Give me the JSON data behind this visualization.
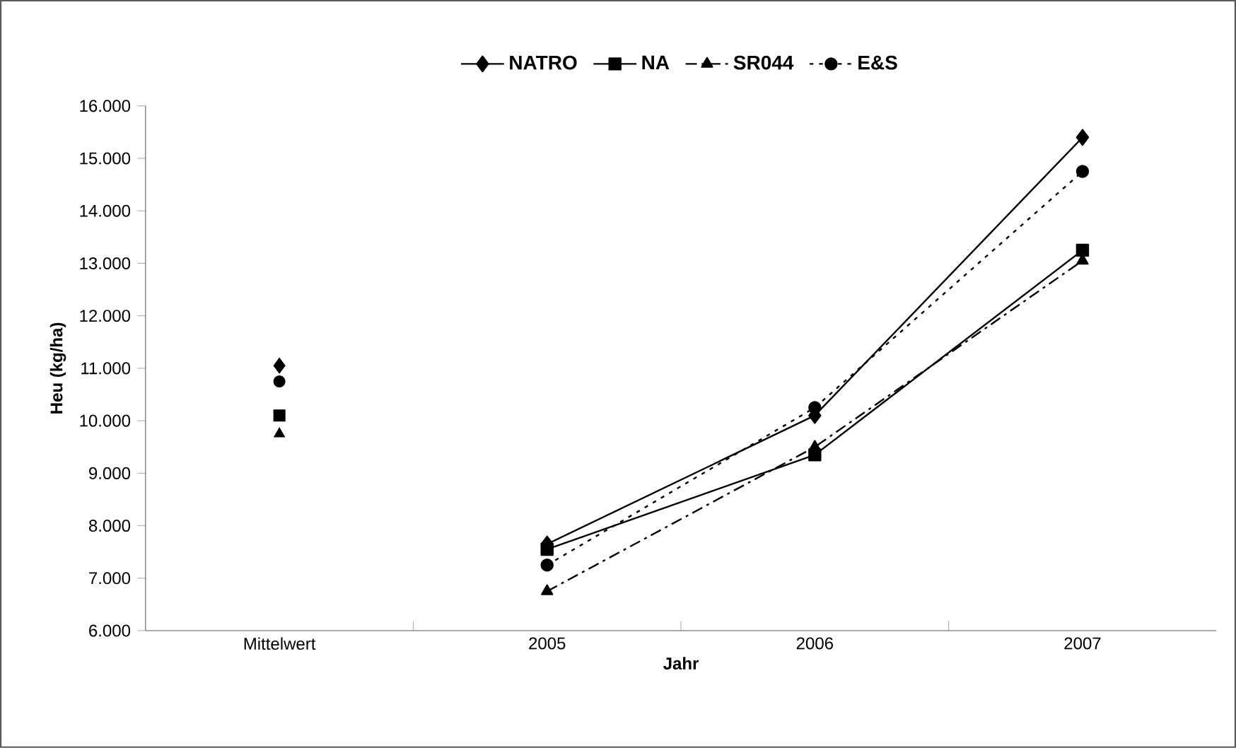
{
  "chart_data": {
    "type": "line",
    "xlabel": "Jahr",
    "ylabel": "Heu (kg/ha)",
    "categories": [
      "Mittelwert",
      "2005",
      "2006",
      "2007"
    ],
    "ylim": [
      6000,
      16000
    ],
    "yticks": [
      {
        "value": 6000,
        "label": "6.000"
      },
      {
        "value": 7000,
        "label": "7.000"
      },
      {
        "value": 8000,
        "label": "8.000"
      },
      {
        "value": 9000,
        "label": "9.000"
      },
      {
        "value": 10000,
        "label": "10.000"
      },
      {
        "value": 11000,
        "label": "11.000"
      },
      {
        "value": 12000,
        "label": "12.000"
      },
      {
        "value": 13000,
        "label": "13.000"
      },
      {
        "value": 14000,
        "label": "14.000"
      },
      {
        "value": 15000,
        "label": "15.000"
      },
      {
        "value": 16000,
        "label": "16.000"
      }
    ],
    "grid": false,
    "legend": "top",
    "series": [
      {
        "name": "NATRO",
        "color": "#000000",
        "marker": "diamond",
        "line_style": "solid",
        "values": [
          null,
          7650,
          10100,
          15400
        ]
      },
      {
        "name": "NA",
        "color": "#000000",
        "marker": "square",
        "line_style": "solid",
        "values": [
          null,
          7550,
          9350,
          13250
        ]
      },
      {
        "name": "SR044",
        "color": "#000000",
        "marker": "triangle",
        "line_style": "dashed",
        "values": [
          null,
          6750,
          9500,
          13050
        ]
      },
      {
        "name": "E&S",
        "color": "#000000",
        "marker": "circle",
        "line_style": "dotted",
        "values": [
          null,
          7250,
          10250,
          14750
        ]
      },
      {
        "type": "scatter",
        "color": "#000000",
        "marker": "diamond",
        "x": [
          "Mittelwert"
        ],
        "values": [
          11050
        ]
      },
      {
        "type": "scatter",
        "color": "#000000",
        "marker": "square",
        "x": [
          "Mittelwert"
        ],
        "values": [
          10100
        ]
      },
      {
        "type": "scatter",
        "color": "#000000",
        "marker": "triangle",
        "x": [
          "Mittelwert"
        ],
        "values": [
          9750
        ]
      },
      {
        "type": "scatter",
        "color": "#000000",
        "marker": "circle",
        "x": [
          "Mittelwert"
        ],
        "values": [
          10750
        ]
      }
    ]
  }
}
